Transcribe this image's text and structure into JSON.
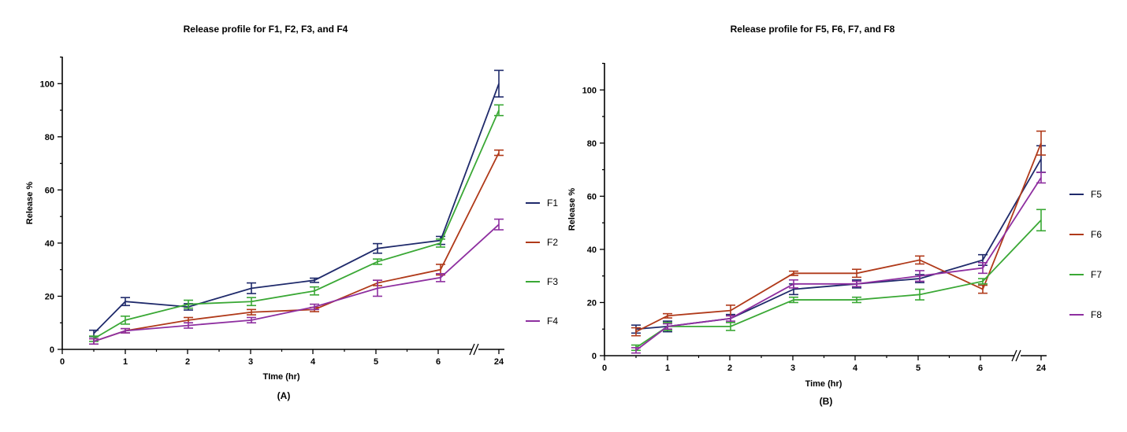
{
  "colors": {
    "F1": "#1f2a6b",
    "F2": "#b03a1a",
    "F3": "#3aa835",
    "F4": "#8e2fa0",
    "F5": "#1f2a6b",
    "F6": "#b03a1a",
    "F7": "#3aa835",
    "F8": "#8e2fa0"
  },
  "chart_data": [
    {
      "type": "line",
      "panel_label": "(A)",
      "title": "Release profile for F1, F2, F3, and F4",
      "xlabel": "TIme (hr)",
      "ylabel": "Release %",
      "x_ticks": [
        "0",
        "1",
        "2",
        "3",
        "4",
        "5",
        "6",
        "24"
      ],
      "x_axis_break": "between 6 and 24",
      "ylim": [
        0,
        110
      ],
      "y_ticks": [
        0,
        20,
        40,
        60,
        80,
        100
      ],
      "x": [
        0.5,
        1,
        2,
        3,
        4,
        5,
        6,
        24
      ],
      "legend_position": "right",
      "series": [
        {
          "name": "F1",
          "values": [
            6,
            18,
            16,
            23,
            26,
            38,
            41,
            100
          ],
          "errors": [
            1.2,
            1.5,
            1.2,
            2,
            0.8,
            1.8,
            1.5,
            5
          ]
        },
        {
          "name": "F2",
          "values": [
            3,
            7,
            11,
            14,
            15,
            25,
            30,
            74
          ],
          "errors": [
            1,
            0.8,
            1,
            1,
            0.8,
            1,
            2,
            1
          ]
        },
        {
          "name": "F3",
          "values": [
            4,
            11,
            17,
            18,
            22,
            33,
            40,
            90
          ],
          "errors": [
            1,
            1.5,
            1.5,
            1.5,
            1.5,
            1,
            1.5,
            2
          ]
        },
        {
          "name": "F4",
          "values": [
            3,
            7,
            9,
            11,
            16,
            23,
            27,
            47
          ],
          "errors": [
            1,
            0.8,
            1,
            1,
            1,
            3,
            1.5,
            2
          ]
        }
      ]
    },
    {
      "type": "line",
      "panel_label": "(B)",
      "title": "Release profile for F5, F6, F7, and F8",
      "xlabel": "Time (hr)",
      "ylabel": "Release %",
      "x_ticks": [
        "0",
        "1",
        "2",
        "3",
        "4",
        "5",
        "6",
        "24"
      ],
      "x_axis_break": "between 6 and 24",
      "ylim": [
        0,
        110
      ],
      "y_ticks": [
        0,
        20,
        40,
        60,
        80,
        100
      ],
      "x": [
        0.5,
        1,
        2,
        3,
        4,
        5,
        6,
        24
      ],
      "legend_position": "right",
      "series": [
        {
          "name": "F5",
          "values": [
            10,
            11,
            14,
            25,
            27,
            29,
            36,
            74
          ],
          "errors": [
            1.5,
            2,
            1.5,
            2,
            1.5,
            1.5,
            2,
            5
          ]
        },
        {
          "name": "F6",
          "values": [
            9,
            15,
            17,
            31,
            31,
            36,
            25,
            80
          ],
          "errors": [
            1.5,
            0.8,
            2,
            0.8,
            1.5,
            1.5,
            1.5,
            4.5
          ]
        },
        {
          "name": "F7",
          "values": [
            3,
            11,
            11,
            21,
            21,
            23,
            28,
            51
          ],
          "errors": [
            1,
            1.5,
            1.5,
            1,
            1,
            2,
            1,
            4
          ]
        },
        {
          "name": "F8",
          "values": [
            2,
            11,
            14,
            27,
            27,
            30,
            33,
            67
          ],
          "errors": [
            1,
            1,
            1,
            1.5,
            1,
            2,
            2,
            2
          ]
        }
      ]
    }
  ]
}
